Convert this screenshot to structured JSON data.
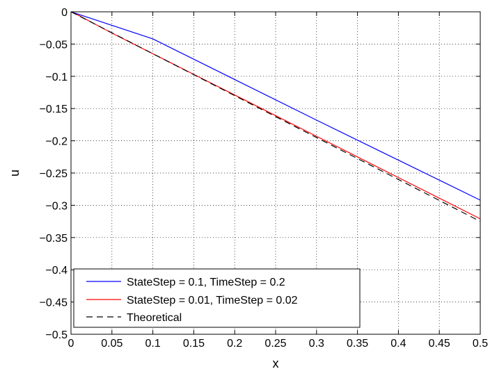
{
  "chart_data": {
    "type": "line",
    "title": "",
    "xlabel": "x",
    "ylabel": "u",
    "xlim": [
      0,
      0.5
    ],
    "ylim": [
      -0.5,
      0
    ],
    "xticks": [
      0,
      0.05,
      0.1,
      0.15,
      0.2,
      0.25,
      0.3,
      0.35,
      0.4,
      0.45,
      0.5
    ],
    "xtick_labels": [
      "0",
      "0.05",
      "0.1",
      "0.15",
      "0.2",
      "0.25",
      "0.3",
      "0.35",
      "0.4",
      "0.45",
      "0.5"
    ],
    "yticks": [
      0,
      -0.05,
      -0.1,
      -0.15,
      -0.2,
      -0.25,
      -0.3,
      -0.35,
      -0.4,
      -0.45,
      -0.5
    ],
    "ytick_labels": [
      "0",
      "−0.05",
      "−0.1",
      "−0.15",
      "−0.2",
      "−0.25",
      "−0.3",
      "−0.35",
      "−0.4",
      "−0.45",
      "−0.5"
    ],
    "grid": true,
    "legend_position": "bottom-left",
    "series": [
      {
        "name": "StateStep = 0.1, TimeStep = 0.2",
        "color": "#0000ff",
        "line_style": "solid",
        "x": [
          0,
          0.1,
          0.2,
          0.3,
          0.4,
          0.5
        ],
        "y": [
          0,
          -0.042,
          -0.105,
          -0.168,
          -0.23,
          -0.292
        ]
      },
      {
        "name": "StateStep = 0.01, TimeStep = 0.02",
        "color": "#ff0000",
        "line_style": "solid",
        "x": [
          0,
          0.01,
          0.05,
          0.1,
          0.15,
          0.2,
          0.25,
          0.3,
          0.35,
          0.4,
          0.45,
          0.5
        ],
        "y": [
          0,
          -0.006,
          -0.033,
          -0.065,
          -0.097,
          -0.129,
          -0.161,
          -0.193,
          -0.225,
          -0.257,
          -0.289,
          -0.321
        ]
      },
      {
        "name": "Theoretical",
        "color": "#000000",
        "line_style": "dashed",
        "x": [
          0,
          0.05,
          0.1,
          0.15,
          0.2,
          0.25,
          0.3,
          0.35,
          0.4,
          0.45,
          0.5
        ],
        "y": [
          0,
          -0.0325,
          -0.065,
          -0.0975,
          -0.13,
          -0.1625,
          -0.195,
          -0.2275,
          -0.26,
          -0.2925,
          -0.325
        ]
      }
    ]
  }
}
